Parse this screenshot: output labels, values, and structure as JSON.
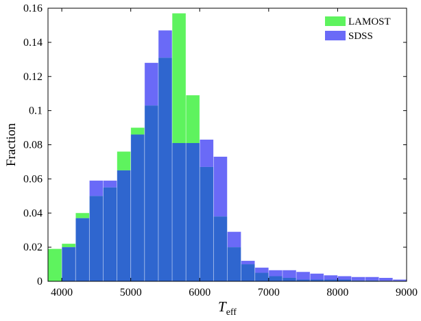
{
  "chart_data": {
    "type": "bar",
    "subtype": "overlapping-histogram",
    "xlabel": "T",
    "xlabel_subscript": "eff",
    "ylabel": "Fraction",
    "xlim": [
      3800,
      9000
    ],
    "ylim": [
      0,
      0.16
    ],
    "xticks": [
      4000,
      5000,
      6000,
      7000,
      8000,
      9000
    ],
    "yticks": [
      0,
      0.02,
      0.04,
      0.06,
      0.08,
      0.1,
      0.12,
      0.14,
      0.16
    ],
    "ytick_labels": [
      "0",
      "0.02",
      "0.04",
      "0.06",
      "0.08",
      "0.1",
      "0.12",
      "0.14",
      "0.16"
    ],
    "bin_edges": [
      3800,
      4000,
      4200,
      4400,
      4600,
      4800,
      5000,
      5200,
      5400,
      5600,
      5800,
      6000,
      6200,
      6400,
      6600,
      6800,
      7000,
      7200,
      7400,
      7600,
      7800,
      8000,
      8200,
      8400,
      8600,
      8800,
      9000
    ],
    "series": [
      {
        "name": "LAMOST",
        "color": "#5ef35e",
        "values": [
          0.019,
          0.022,
          0.04,
          0.05,
          0.055,
          0.076,
          0.09,
          0.103,
          0.131,
          0.157,
          0.109,
          0.067,
          0.038,
          0.02,
          0.01,
          0.005,
          0.003,
          0.002,
          0.001,
          0.001,
          0.001,
          0.001,
          0.0005,
          0.0005,
          0.0003,
          0.0003
        ]
      },
      {
        "name": "SDSS",
        "color": "#6a6af7",
        "values": [
          0.0,
          0.02,
          0.037,
          0.059,
          0.059,
          0.065,
          0.086,
          0.128,
          0.147,
          0.081,
          0.081,
          0.083,
          0.073,
          0.029,
          0.012,
          0.008,
          0.0065,
          0.0065,
          0.0055,
          0.0045,
          0.0035,
          0.003,
          0.0025,
          0.0025,
          0.002,
          0.001
        ]
      }
    ],
    "overlap_color": "#2f66cf",
    "legend_position": "top-right",
    "grid": false
  }
}
